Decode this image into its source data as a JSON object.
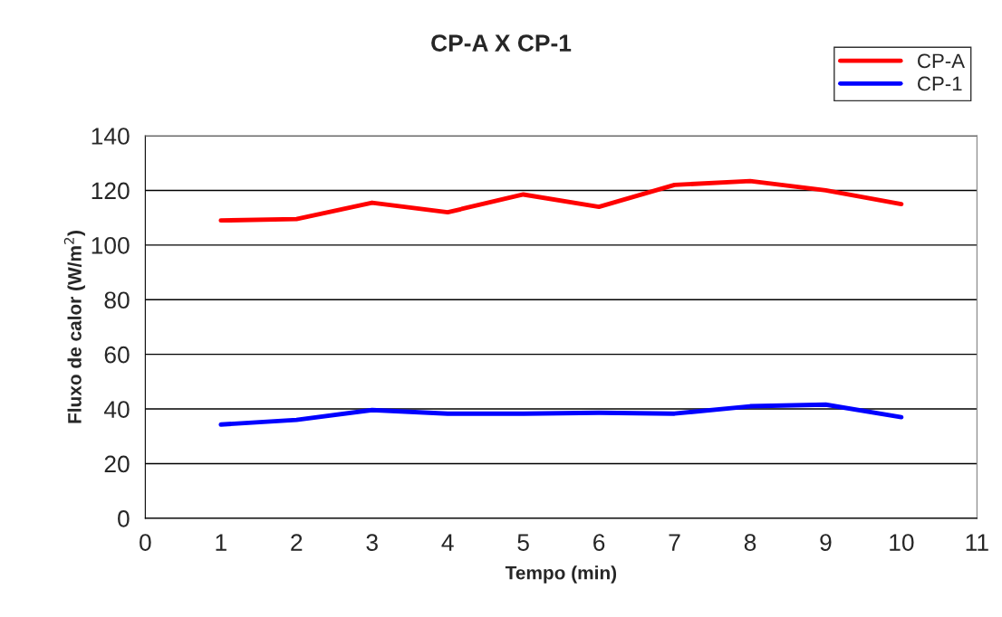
{
  "chart_data": {
    "type": "line",
    "title": "CP-A X CP-1",
    "xlabel": "Tempo (min)",
    "ylabel": "Fluxo de calor (W/m$^{2}$)",
    "x": [
      1,
      2,
      3,
      4,
      5,
      6,
      7,
      8,
      9,
      10
    ],
    "series": [
      {
        "name": "CP-A",
        "color": "#ff0000",
        "values": [
          109,
          109.5,
          115.5,
          112,
          118.5,
          114,
          122,
          123.4,
          120,
          115
        ]
      },
      {
        "name": "CP-1",
        "color": "#0000ff",
        "values": [
          34.3,
          36,
          39.6,
          38.3,
          38.3,
          38.6,
          38.3,
          41,
          41.6,
          37
        ]
      }
    ],
    "xlim": [
      0,
      11
    ],
    "xticks": [
      0,
      1,
      2,
      3,
      4,
      5,
      6,
      7,
      8,
      9,
      10,
      11
    ],
    "ylim": [
      0,
      140
    ],
    "yticks": [
      0,
      20,
      40,
      60,
      80,
      100,
      120,
      140
    ],
    "grid": "y",
    "legend": "top right",
    "marker": "none",
    "line_style": "solid"
  }
}
